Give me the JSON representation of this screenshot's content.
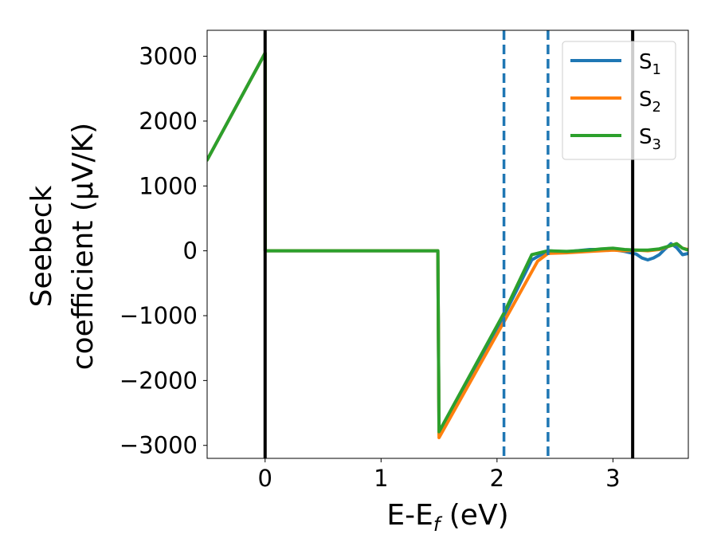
{
  "chart_data": {
    "type": "line",
    "xlabel": "E-E",
    "xlabel_sub": "f",
    "xlabel_unit": " (eV)",
    "ylabel_line1": "Seebeck",
    "ylabel_line2": "coefficient  (μV/K)",
    "xlim": [
      -0.5,
      3.65
    ],
    "ylim": [
      -3200,
      3400
    ],
    "xticks": [
      0,
      1,
      2,
      3
    ],
    "xtick_labels": [
      "0",
      "1",
      "2",
      "3"
    ],
    "yticks": [
      3000,
      2000,
      1000,
      0,
      -1000,
      -2000,
      -3000
    ],
    "ytick_labels": [
      "3000",
      "2000",
      "1000",
      "0",
      "−1000",
      "−2000",
      "−3000"
    ],
    "legend_position": "top-right",
    "vertical_lines": [
      {
        "x": 0.0,
        "style": "solid",
        "color": "#000000"
      },
      {
        "x": 3.17,
        "style": "solid",
        "color": "#000000"
      },
      {
        "x": 2.06,
        "style": "dashed",
        "color": "#1f77b4"
      },
      {
        "x": 2.44,
        "style": "dashed",
        "color": "#1f77b4"
      }
    ],
    "series": [
      {
        "name": "S",
        "sub": "1",
        "color": "#1f77b4",
        "x": [
          -0.5,
          0.0,
          0.001,
          1.49,
          1.5,
          2.06,
          2.3,
          2.44,
          2.6,
          2.8,
          3.0,
          3.1,
          3.2,
          3.25,
          3.3,
          3.35,
          3.4,
          3.45,
          3.5,
          3.55,
          3.6,
          3.65
        ],
        "y": [
          1400,
          3050,
          0,
          0,
          -2830,
          -1000,
          -140,
          0,
          -15,
          20,
          20,
          -10,
          -50,
          -110,
          -140,
          -110,
          -60,
          30,
          110,
          50,
          -60,
          -40
        ]
      },
      {
        "name": "S",
        "sub": "2",
        "color": "#ff7f0e",
        "x": [
          -0.5,
          0.0,
          0.001,
          1.49,
          1.5,
          2.08,
          2.35,
          2.44,
          2.6,
          2.8,
          3.0,
          3.1,
          3.2,
          3.3,
          3.4,
          3.5,
          3.55,
          3.6,
          3.65
        ],
        "y": [
          1400,
          3050,
          0,
          0,
          -2880,
          -1030,
          -160,
          -40,
          -30,
          -10,
          10,
          0,
          10,
          0,
          20,
          80,
          110,
          40,
          20
        ]
      },
      {
        "name": "S",
        "sub": "3",
        "color": "#2ca02c",
        "x": [
          -0.5,
          0.0,
          0.001,
          1.49,
          1.5,
          2.06,
          2.3,
          2.44,
          2.6,
          2.8,
          2.9,
          3.0,
          3.1,
          3.2,
          3.3,
          3.4,
          3.5,
          3.55,
          3.6,
          3.65
        ],
        "y": [
          1400,
          3050,
          0,
          0,
          -2790,
          -960,
          -60,
          0,
          -10,
          10,
          30,
          40,
          20,
          10,
          10,
          30,
          80,
          110,
          40,
          10
        ]
      }
    ]
  }
}
